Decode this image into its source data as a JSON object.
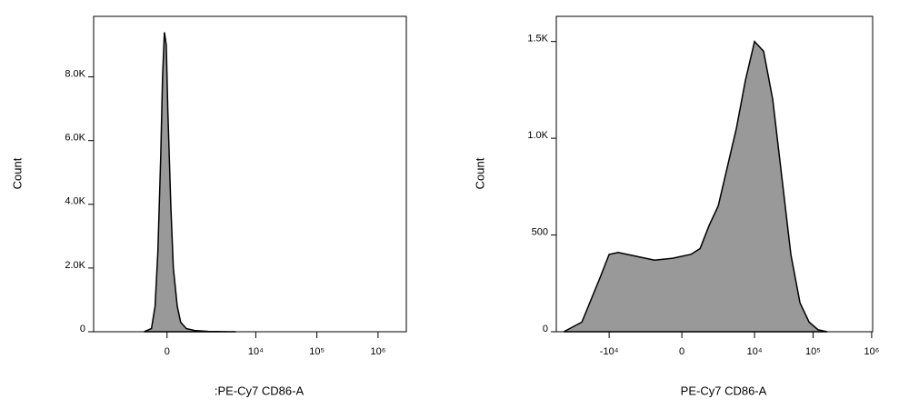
{
  "chart_data": [
    {
      "type": "area",
      "xscale": "biexponential",
      "x_label": ":PE-Cy7 CD86-A",
      "y_label": "Count",
      "x": [
        -690,
        -440,
        -330,
        -250,
        -170,
        -120,
        -70,
        -20,
        20,
        100,
        170,
        280,
        380,
        560,
        870,
        1600,
        4700
      ],
      "series": [
        {
          "color": "#999999",
          "values": [
            0,
            100,
            800,
            2500,
            5500,
            8000,
            9400,
            9000,
            7000,
            4000,
            2000,
            800,
            300,
            100,
            40,
            10,
            0
          ]
        }
      ],
      "xlim": [
        -5600,
        2900000
      ],
      "xticks": [
        0,
        {
          "value": 10000,
          "label": "10⁴"
        },
        {
          "value": 100000,
          "label": "10⁵"
        },
        {
          "value": 1000000,
          "label": "10⁶"
        }
      ],
      "ylim": [
        0,
        9900
      ],
      "yticks": [
        0,
        {
          "value": 2000,
          "label": "2.0K"
        },
        {
          "value": 4000,
          "label": "4.0K"
        },
        {
          "value": 6000,
          "label": "6.0K"
        },
        {
          "value": 8000,
          "label": "8.0K"
        }
      ]
    },
    {
      "type": "area",
      "xscale": "biexponential",
      "x_label": "PE-Cy7 CD86-A",
      "y_label": "Count",
      "x": [
        -59700,
        -29300,
        -14300,
        -10000,
        -6970,
        -3340,
        -1490,
        -420,
        420,
        900,
        1490,
        2270,
        3340,
        4840,
        6970,
        10000,
        14300,
        20500,
        29300,
        41800,
        59800,
        85600,
        122000,
        175000
      ],
      "series": [
        {
          "color": "#999999",
          "values": [
            0,
            50,
            280,
            400,
            410,
            390,
            370,
            380,
            400,
            430,
            550,
            650,
            850,
            1050,
            1300,
            1500,
            1450,
            1200,
            800,
            400,
            150,
            50,
            10,
            0
          ]
        }
      ],
      "xlim": [
        -80000,
        1040000
      ],
      "xticks": [
        {
          "value": -10000,
          "label": "-10⁴"
        },
        0,
        {
          "value": 10000,
          "label": "10⁴"
        },
        {
          "value": 100000,
          "label": "10⁵"
        },
        {
          "value": 1000000,
          "label": "10⁶"
        }
      ],
      "ylim": [
        0,
        1630
      ],
      "yticks": [
        0,
        500,
        {
          "value": 1000,
          "label": "1.0K"
        },
        {
          "value": 1500,
          "label": "1.5K"
        }
      ]
    }
  ]
}
